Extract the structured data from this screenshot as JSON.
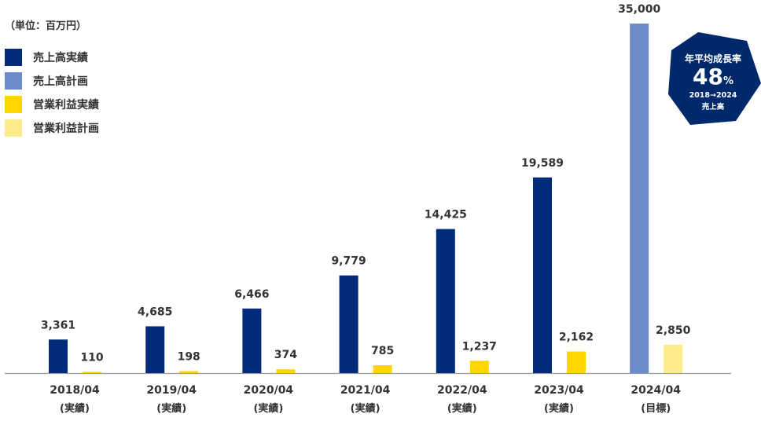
{
  "unit_label": "（単位：百万円）",
  "legend": [
    {
      "label": "売上高実績",
      "color": "#002a7a"
    },
    {
      "label": "売上高計画",
      "color": "#6b8bcb"
    },
    {
      "label": "営業利益実績",
      "color": "#ffd500"
    },
    {
      "label": "営業利益計画",
      "color": "#fdeb8a"
    }
  ],
  "badge": {
    "title": "年平均成長率",
    "value": "48",
    "unit": "%",
    "period": "2018→2024",
    "caption": "売上高",
    "color": "#00296b"
  },
  "chart_data": {
    "type": "bar",
    "ylim": [
      0,
      35000
    ],
    "categories": [
      {
        "year": "2018/04",
        "note": "(実績)"
      },
      {
        "year": "2019/04",
        "note": "(実績)"
      },
      {
        "year": "2020/04",
        "note": "(実績)"
      },
      {
        "year": "2021/04",
        "note": "(実績)"
      },
      {
        "year": "2022/04",
        "note": "(実績)"
      },
      {
        "year": "2023/04",
        "note": "(実績)"
      },
      {
        "year": "2024/04",
        "note": "(目標)"
      }
    ],
    "series": [
      {
        "name": "売上高",
        "values": [
          3361,
          4685,
          6466,
          9779,
          14425,
          19589,
          35000
        ],
        "labels": [
          "3,361",
          "4,685",
          "6,466",
          "9,779",
          "14,425",
          "19,589",
          "35,000"
        ],
        "colors": [
          "#002a7a",
          "#002a7a",
          "#002a7a",
          "#002a7a",
          "#002a7a",
          "#002a7a",
          "#6b8bcb"
        ]
      },
      {
        "name": "営業利益",
        "values": [
          110,
          198,
          374,
          785,
          1237,
          2162,
          2850
        ],
        "labels": [
          "110",
          "198",
          "374",
          "785",
          "1,237",
          "2,162",
          "2,850"
        ],
        "colors": [
          "#ffd500",
          "#ffd500",
          "#ffd500",
          "#ffd500",
          "#ffd500",
          "#ffd500",
          "#fdeb8a"
        ]
      }
    ]
  }
}
